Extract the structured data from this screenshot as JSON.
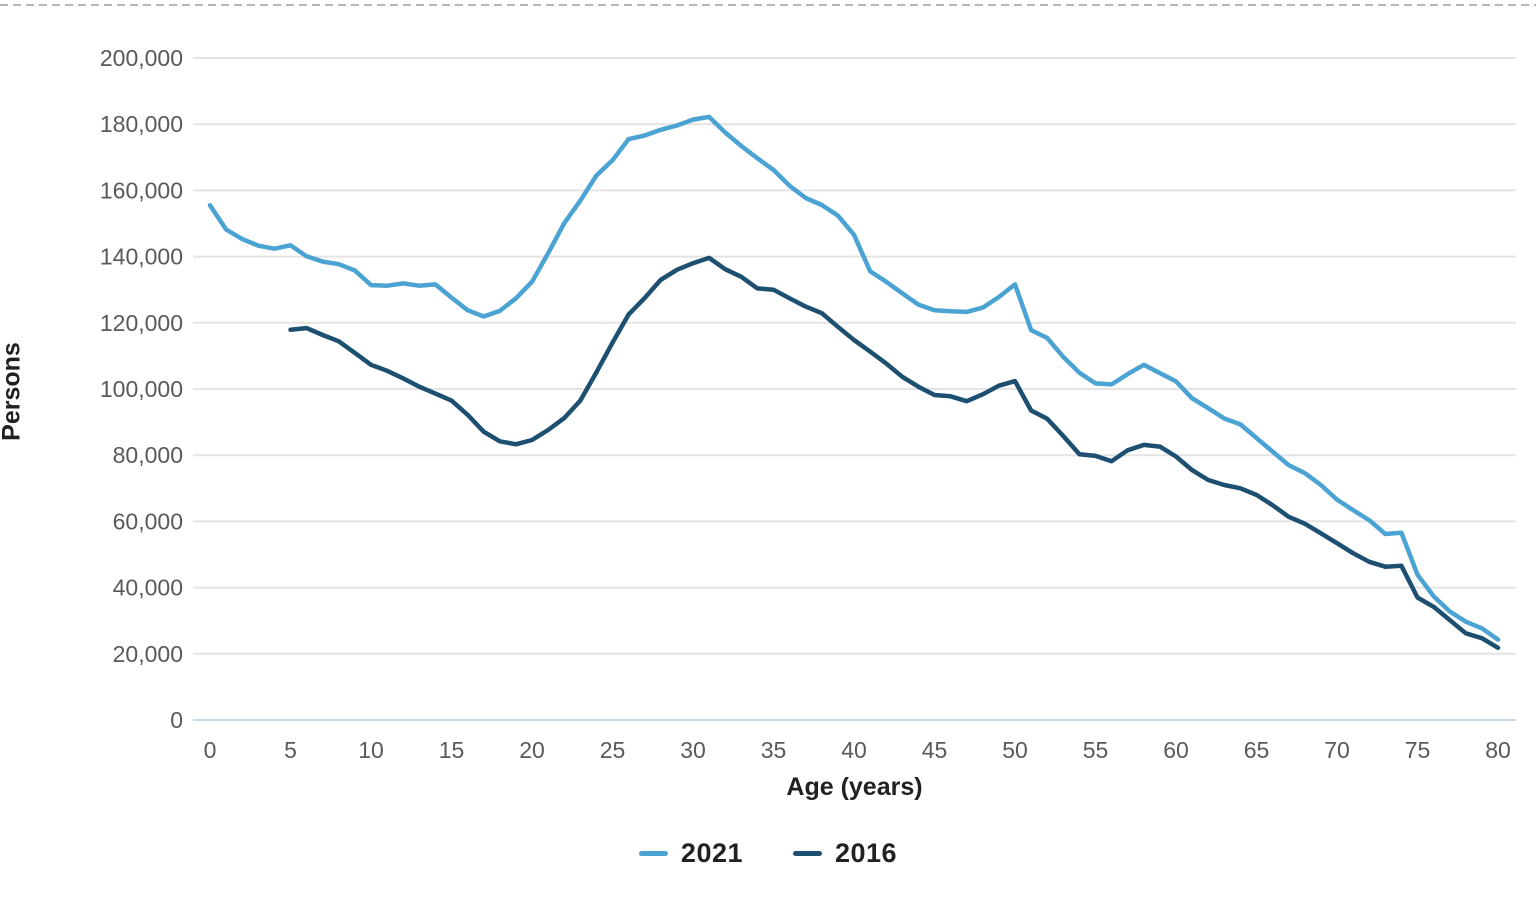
{
  "chart_data": {
    "type": "line",
    "title": "",
    "xlabel": "Age (years)",
    "ylabel": "Persons",
    "xlim": [
      0,
      80
    ],
    "ylim": [
      0,
      200000
    ],
    "x_tick_values": [
      0,
      5,
      10,
      15,
      20,
      25,
      30,
      35,
      40,
      45,
      50,
      55,
      60,
      65,
      70,
      75,
      80
    ],
    "x_tick_labels": [
      "0",
      "5",
      "10",
      "15",
      "20",
      "25",
      "30",
      "35",
      "40",
      "45",
      "50",
      "55",
      "60",
      "65",
      "70",
      "75",
      "80"
    ],
    "y_tick_values": [
      0,
      20000,
      40000,
      60000,
      80000,
      100000,
      120000,
      140000,
      160000,
      180000,
      200000
    ],
    "y_tick_labels": [
      "0",
      "20,000",
      "40,000",
      "60,000",
      "80,000",
      "100,000",
      "120,000",
      "140,000",
      "160,000",
      "180,000",
      "200,000"
    ],
    "grid": "horizontal",
    "legend_position": "bottom-center",
    "series": [
      {
        "name": "2021",
        "color": "#4BA3D4",
        "start_age": 0,
        "values": [
          155500,
          148200,
          145300,
          143300,
          142400,
          143400,
          140100,
          138500,
          137700,
          135800,
          131400,
          131200,
          131900,
          131200,
          131600,
          127600,
          123800,
          121900,
          123600,
          127400,
          132400,
          141000,
          150100,
          156900,
          164500,
          169100,
          175500,
          176600,
          178300,
          179600,
          181400,
          182200,
          177500,
          173400,
          169700,
          166200,
          161400,
          157700,
          155600,
          152400,
          146600,
          135600,
          132400,
          128900,
          125500,
          123800,
          123500,
          123300,
          124600,
          127800,
          131600,
          117800,
          115400,
          109700,
          104900,
          101700,
          101400,
          104500,
          107300,
          104800,
          102300,
          97200,
          94200,
          91100,
          89300,
          85200,
          81100,
          77000,
          74600,
          71000,
          66600,
          63400,
          60400,
          56200,
          56600,
          43900,
          37400,
          32800,
          29700,
          27700,
          24300
        ]
      },
      {
        "name": "2016",
        "color": "#1D4F70",
        "start_age": 5,
        "values": [
          117900,
          118400,
          116300,
          114400,
          110900,
          107300,
          105500,
          103200,
          100700,
          98600,
          96500,
          92200,
          87100,
          84200,
          83300,
          84600,
          87600,
          91200,
          96500,
          105000,
          114000,
          122500,
          127500,
          133000,
          136000,
          138000,
          139600,
          136200,
          133900,
          130400,
          130000,
          127400,
          124900,
          122900,
          118800,
          114800,
          111300,
          107700,
          103700,
          100700,
          98200,
          97800,
          96300,
          98400,
          101000,
          102400,
          93500,
          91000,
          85800,
          80300,
          79800,
          78200,
          81500,
          83100,
          82600,
          79600,
          75500,
          72500,
          71000,
          70000,
          68000,
          64900,
          61400,
          59300,
          56400,
          53400,
          50400,
          47800,
          46300,
          46600,
          37000,
          34200,
          30200,
          26200,
          24700,
          21800
        ]
      }
    ],
    "style": {
      "grid_color": "#e4e4e4",
      "zero_line_color": "#c5d9ec",
      "tick_label_color": "#595959",
      "axis_title_color": "#212121",
      "top_dashed_border_color": "#b5b5b5"
    }
  }
}
